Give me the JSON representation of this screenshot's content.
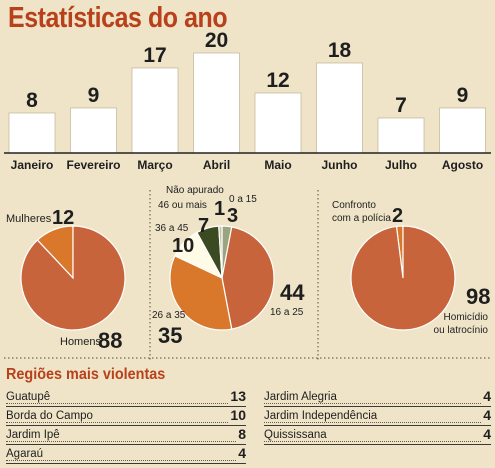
{
  "title": "Estatísticas do ano",
  "chart_data": [
    {
      "type": "bar",
      "title": "",
      "categories": [
        "Janeiro",
        "Fevereiro",
        "Março",
        "Abril",
        "Maio",
        "Junho",
        "Julho",
        "Agosto"
      ],
      "values": [
        8,
        9,
        17,
        20,
        12,
        18,
        7,
        9
      ],
      "ylim": [
        0,
        20
      ],
      "colors": {
        "bar": "#ffffff",
        "stroke": "#b8a888"
      }
    },
    {
      "type": "pie",
      "labels": [
        "Mulheres",
        "Homens"
      ],
      "values": [
        12,
        88
      ],
      "colors": [
        "#d9782a",
        "#c8643c"
      ]
    },
    {
      "type": "pie",
      "labels": [
        "0 a 15",
        "16 a 25",
        "26 a 35",
        "36 a 45",
        "46 ou mais",
        "Não apurado"
      ],
      "values": [
        3,
        44,
        35,
        10,
        7,
        1
      ],
      "colors": [
        "#9aa580",
        "#c8643c",
        "#d9782a",
        "#fffbe6",
        "#3c4a22",
        "#c8bfa8"
      ]
    },
    {
      "type": "pie",
      "labels": [
        "Confronto com a polícia",
        "Homicídio ou latrocínio"
      ],
      "label_lines": [
        [
          "Confronto",
          "com a polícia"
        ],
        [
          "Homicídio",
          "ou latrocínio"
        ]
      ],
      "values": [
        2,
        98
      ],
      "colors": [
        "#d9782a",
        "#c8643c"
      ]
    }
  ],
  "regions": {
    "title": "Regiões mais violentas",
    "left": [
      {
        "name": "Guatupê",
        "value": "13"
      },
      {
        "name": "Borda do Campo",
        "value": "10"
      },
      {
        "name": "Jardim Ipê",
        "value": "8"
      },
      {
        "name": "Agaraú",
        "value": "4"
      }
    ],
    "right": [
      {
        "name": "Jardim Alegria",
        "value": "4"
      },
      {
        "name": "Jardim Independência",
        "value": "4"
      },
      {
        "name": "Quississana",
        "value": "4"
      }
    ]
  }
}
